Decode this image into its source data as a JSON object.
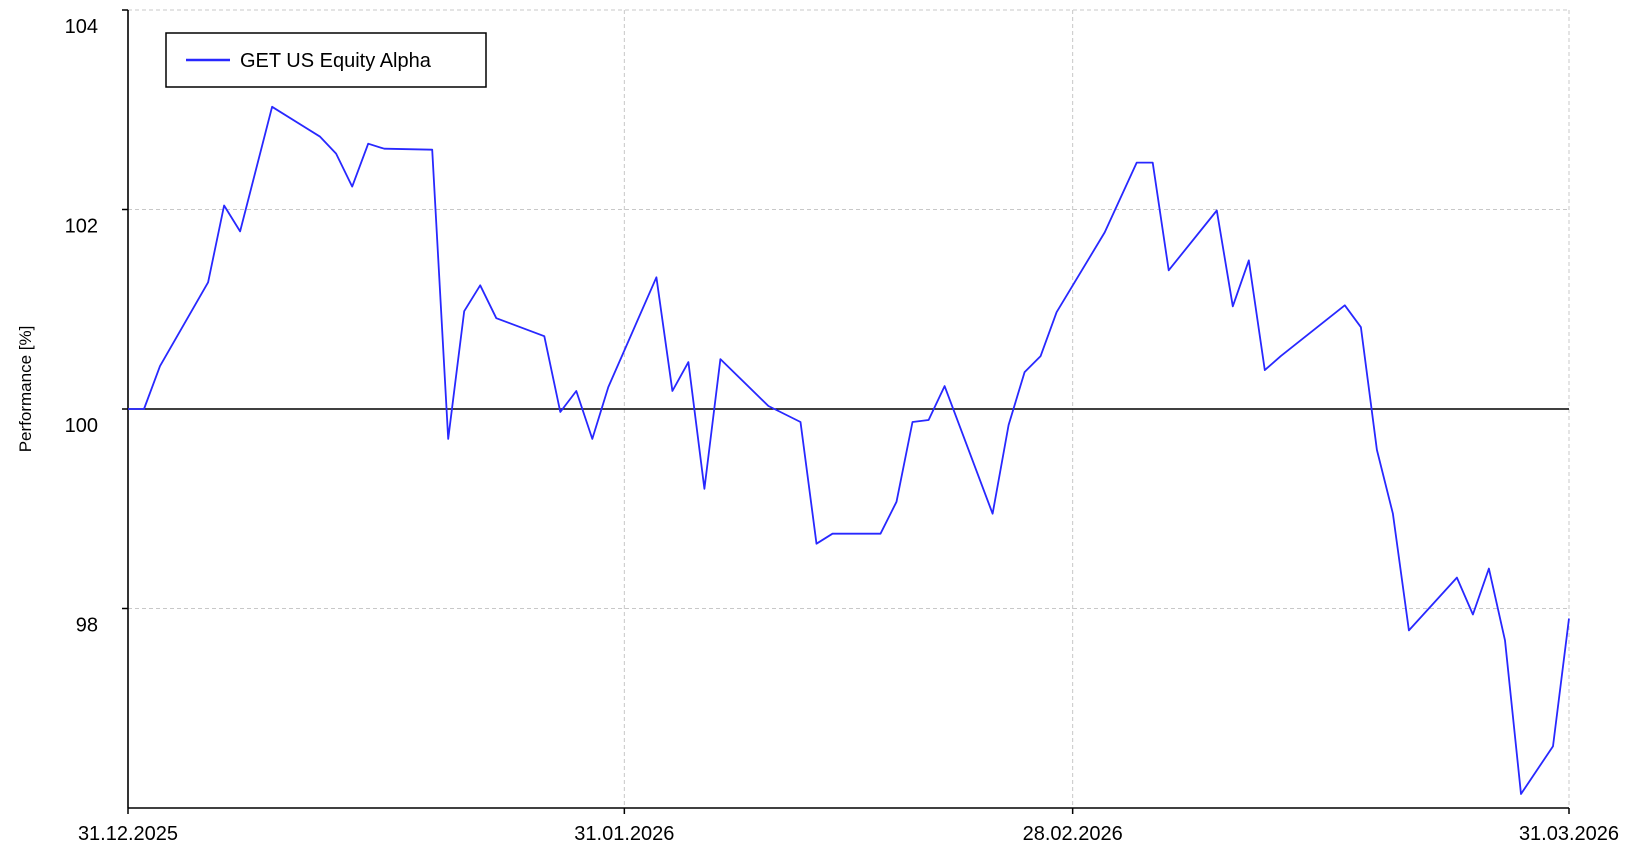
{
  "chart_data": {
    "type": "line",
    "title": "",
    "xlabel": "",
    "ylabel": "Performance [%]",
    "x_range": [
      "2025-12-31",
      "2026-03-31"
    ],
    "ylim": [
      96,
      104
    ],
    "y_ticks": [
      98,
      100,
      102,
      104
    ],
    "x_ticks": [
      {
        "date": "2025-12-31",
        "label": "31.12.2025"
      },
      {
        "date": "2026-01-31",
        "label": "31.01.2026"
      },
      {
        "date": "2026-02-28",
        "label": "28.02.2026"
      },
      {
        "date": "2026-03-31",
        "label": "31.03.2026"
      }
    ],
    "grid": true,
    "reference_line": 100,
    "legend_position": "top-left",
    "series": [
      {
        "name": "GET US Equity Alpha",
        "color": "#2828ff",
        "points": [
          [
            "2025-12-31",
            100.0
          ],
          [
            "2026-01-01",
            100.0
          ],
          [
            "2026-01-02",
            100.43
          ],
          [
            "2026-01-05",
            101.27
          ],
          [
            "2026-01-06",
            102.04
          ],
          [
            "2026-01-07",
            101.78
          ],
          [
            "2026-01-09",
            103.03
          ],
          [
            "2026-01-12",
            102.73
          ],
          [
            "2026-01-13",
            102.56
          ],
          [
            "2026-01-14",
            102.23
          ],
          [
            "2026-01-15",
            102.66
          ],
          [
            "2026-01-16",
            102.61
          ],
          [
            "2026-01-19",
            102.6
          ],
          [
            "2026-01-20",
            99.7
          ],
          [
            "2026-01-21",
            100.98
          ],
          [
            "2026-01-22",
            101.24
          ],
          [
            "2026-01-23",
            100.91
          ],
          [
            "2026-01-26",
            100.73
          ],
          [
            "2026-01-27",
            99.97
          ],
          [
            "2026-01-28",
            100.18
          ],
          [
            "2026-01-29",
            99.7
          ],
          [
            "2026-01-30",
            100.22
          ],
          [
            "2026-02-02",
            101.32
          ],
          [
            "2026-02-03",
            100.18
          ],
          [
            "2026-02-04",
            100.47
          ],
          [
            "2026-02-05",
            99.2
          ],
          [
            "2026-02-06",
            100.5
          ],
          [
            "2026-02-09",
            100.03
          ],
          [
            "2026-02-11",
            99.87
          ],
          [
            "2026-02-12",
            98.65
          ],
          [
            "2026-02-13",
            98.75
          ],
          [
            "2026-02-16",
            98.75
          ],
          [
            "2026-02-17",
            99.07
          ],
          [
            "2026-02-18",
            99.87
          ],
          [
            "2026-02-19",
            99.89
          ],
          [
            "2026-02-20",
            100.23
          ],
          [
            "2026-02-23",
            98.95
          ],
          [
            "2026-02-24",
            99.84
          ],
          [
            "2026-02-25",
            100.37
          ],
          [
            "2026-02-26",
            100.53
          ],
          [
            "2026-02-27",
            100.97
          ],
          [
            "2026-03-02",
            101.77
          ],
          [
            "2026-03-03",
            102.12
          ],
          [
            "2026-03-04",
            102.47
          ],
          [
            "2026-03-05",
            102.47
          ],
          [
            "2026-03-06",
            101.39
          ],
          [
            "2026-03-09",
            101.99
          ],
          [
            "2026-03-10",
            101.03
          ],
          [
            "2026-03-11",
            101.49
          ],
          [
            "2026-03-12",
            100.39
          ],
          [
            "2026-03-13",
            100.53
          ],
          [
            "2026-03-17",
            101.04
          ],
          [
            "2026-03-18",
            100.82
          ],
          [
            "2026-03-19",
            99.59
          ],
          [
            "2026-03-20",
            98.95
          ],
          [
            "2026-03-21",
            97.78
          ],
          [
            "2026-03-24",
            98.31
          ],
          [
            "2026-03-25",
            97.94
          ],
          [
            "2026-03-26",
            98.4
          ],
          [
            "2026-03-27",
            97.68
          ],
          [
            "2026-03-28",
            96.14
          ],
          [
            "2026-03-30",
            96.62
          ],
          [
            "2026-03-31",
            97.9
          ]
        ]
      }
    ]
  }
}
